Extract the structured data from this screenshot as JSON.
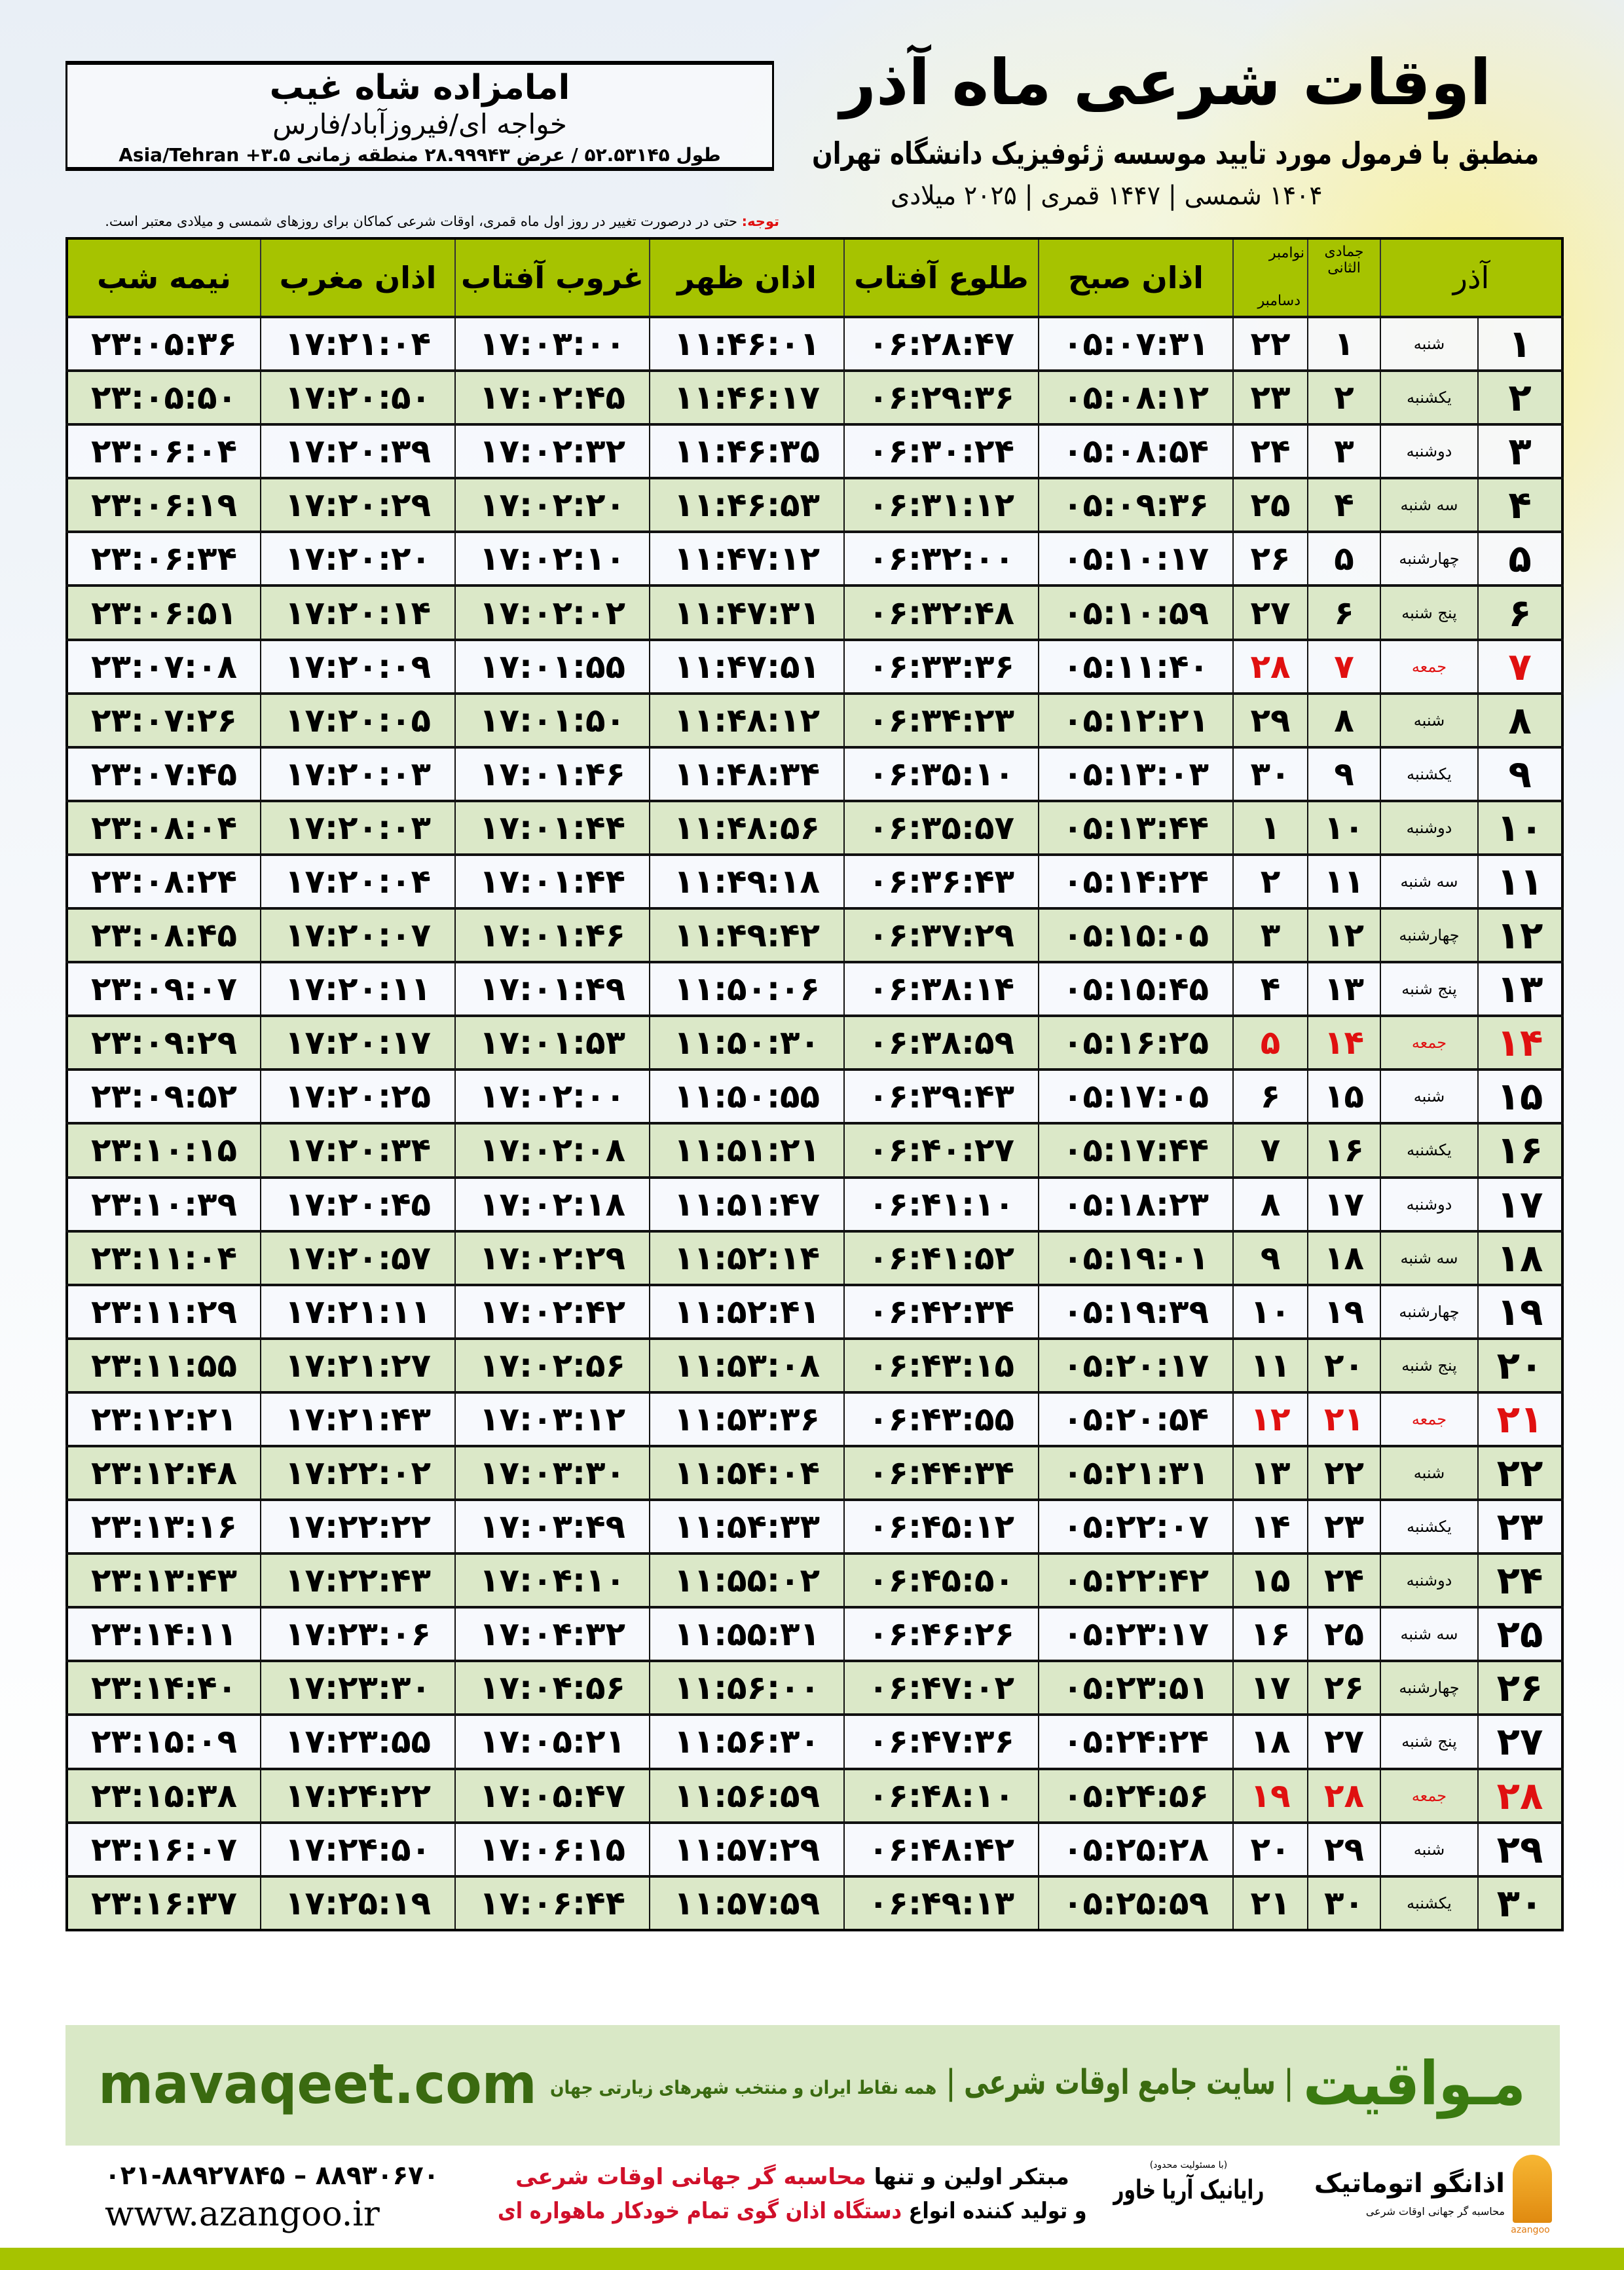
{
  "header": {
    "title": "اوقات شرعی ماه آذر",
    "subtitle": "منطبق با فرمول مورد تایید موسسه ژئوفیزیک دانشگاه تهران",
    "dateline": "۱۴۰۴ شمسی | ۱۴۴۷ قمری | ۲۰۲۵ میلادی"
  },
  "location": {
    "name": "امامزاده شاه غیب",
    "place": "خواجه ای/فیروزآباد/فارس",
    "coords": "طول ۵۲.۵۳۱۴۵ / عرض ۲۸.۹۹۹۴۳ منطقه زمانی ۳.۵+ Asia/Tehran"
  },
  "note": {
    "label": "توجه:",
    "text": " حتی در درصورت تغییر در روز اول ماه قمری، اوقات شرعی کماکان برای روزهای شمسی و میلادی معتبر است."
  },
  "colors": {
    "header_bg": "#a6c300",
    "alt_row": "#dbe8c8",
    "friday": "#e01010",
    "brand": "#3a7a10"
  },
  "table": {
    "columns": {
      "day": "آذر",
      "hijri": "جمادی الثانی",
      "greg_top": "نوامبر",
      "greg_bottom": "دسامبر",
      "fajr": "اذان صبح",
      "sunrise": "طلوع آفتاب",
      "dhuhr": "اذان ظهر",
      "sunset": "غروب آفتاب",
      "maghrib": "اذان مغرب",
      "midnight": "نیمه شب"
    },
    "rows": [
      {
        "day": "۱",
        "weekday": "شنبه",
        "hijri": "۱",
        "greg": "۲۲",
        "fajr": "۰۵:۰۷:۳۱",
        "sunrise": "۰۶:۲۸:۴۷",
        "dhuhr": "۱۱:۴۶:۰۱",
        "sunset": "۱۷:۰۳:۰۰",
        "maghrib": "۱۷:۲۱:۰۴",
        "midnight": "۲۳:۰۵:۳۶"
      },
      {
        "day": "۲",
        "weekday": "یکشنبه",
        "hijri": "۲",
        "greg": "۲۳",
        "fajr": "۰۵:۰۸:۱۲",
        "sunrise": "۰۶:۲۹:۳۶",
        "dhuhr": "۱۱:۴۶:۱۷",
        "sunset": "۱۷:۰۲:۴۵",
        "maghrib": "۱۷:۲۰:۵۰",
        "midnight": "۲۳:۰۵:۵۰"
      },
      {
        "day": "۳",
        "weekday": "دوشنبه",
        "hijri": "۳",
        "greg": "۲۴",
        "fajr": "۰۵:۰۸:۵۴",
        "sunrise": "۰۶:۳۰:۲۴",
        "dhuhr": "۱۱:۴۶:۳۵",
        "sunset": "۱۷:۰۲:۳۲",
        "maghrib": "۱۷:۲۰:۳۹",
        "midnight": "۲۳:۰۶:۰۴"
      },
      {
        "day": "۴",
        "weekday": "سه شنبه",
        "hijri": "۴",
        "greg": "۲۵",
        "fajr": "۰۵:۰۹:۳۶",
        "sunrise": "۰۶:۳۱:۱۲",
        "dhuhr": "۱۱:۴۶:۵۳",
        "sunset": "۱۷:۰۲:۲۰",
        "maghrib": "۱۷:۲۰:۲۹",
        "midnight": "۲۳:۰۶:۱۹"
      },
      {
        "day": "۵",
        "weekday": "چهارشنبه",
        "hijri": "۵",
        "greg": "۲۶",
        "fajr": "۰۵:۱۰:۱۷",
        "sunrise": "۰۶:۳۲:۰۰",
        "dhuhr": "۱۱:۴۷:۱۲",
        "sunset": "۱۷:۰۲:۱۰",
        "maghrib": "۱۷:۲۰:۲۰",
        "midnight": "۲۳:۰۶:۳۴"
      },
      {
        "day": "۶",
        "weekday": "پنج شنبه",
        "hijri": "۶",
        "greg": "۲۷",
        "fajr": "۰۵:۱۰:۵۹",
        "sunrise": "۰۶:۳۲:۴۸",
        "dhuhr": "۱۱:۴۷:۳۱",
        "sunset": "۱۷:۰۲:۰۲",
        "maghrib": "۱۷:۲۰:۱۴",
        "midnight": "۲۳:۰۶:۵۱"
      },
      {
        "day": "۷",
        "weekday": "جمعه",
        "hijri": "۷",
        "greg": "۲۸",
        "fajr": "۰۵:۱۱:۴۰",
        "sunrise": "۰۶:۳۳:۳۶",
        "dhuhr": "۱۱:۴۷:۵۱",
        "sunset": "۱۷:۰۱:۵۵",
        "maghrib": "۱۷:۲۰:۰۹",
        "midnight": "۲۳:۰۷:۰۸",
        "holiday": true
      },
      {
        "day": "۸",
        "weekday": "شنبه",
        "hijri": "۸",
        "greg": "۲۹",
        "fajr": "۰۵:۱۲:۲۱",
        "sunrise": "۰۶:۳۴:۲۳",
        "dhuhr": "۱۱:۴۸:۱۲",
        "sunset": "۱۷:۰۱:۵۰",
        "maghrib": "۱۷:۲۰:۰۵",
        "midnight": "۲۳:۰۷:۲۶"
      },
      {
        "day": "۹",
        "weekday": "یکشنبه",
        "hijri": "۹",
        "greg": "۳۰",
        "fajr": "۰۵:۱۳:۰۳",
        "sunrise": "۰۶:۳۵:۱۰",
        "dhuhr": "۱۱:۴۸:۳۴",
        "sunset": "۱۷:۰۱:۴۶",
        "maghrib": "۱۷:۲۰:۰۳",
        "midnight": "۲۳:۰۷:۴۵"
      },
      {
        "day": "۱۰",
        "weekday": "دوشنبه",
        "hijri": "۱۰",
        "greg": "۱",
        "fajr": "۰۵:۱۳:۴۴",
        "sunrise": "۰۶:۳۵:۵۷",
        "dhuhr": "۱۱:۴۸:۵۶",
        "sunset": "۱۷:۰۱:۴۴",
        "maghrib": "۱۷:۲۰:۰۳",
        "midnight": "۲۳:۰۸:۰۴"
      },
      {
        "day": "۱۱",
        "weekday": "سه شنبه",
        "hijri": "۱۱",
        "greg": "۲",
        "fajr": "۰۵:۱۴:۲۴",
        "sunrise": "۰۶:۳۶:۴۳",
        "dhuhr": "۱۱:۴۹:۱۸",
        "sunset": "۱۷:۰۱:۴۴",
        "maghrib": "۱۷:۲۰:۰۴",
        "midnight": "۲۳:۰۸:۲۴"
      },
      {
        "day": "۱۲",
        "weekday": "چهارشنبه",
        "hijri": "۱۲",
        "greg": "۳",
        "fajr": "۰۵:۱۵:۰۵",
        "sunrise": "۰۶:۳۷:۲۹",
        "dhuhr": "۱۱:۴۹:۴۲",
        "sunset": "۱۷:۰۱:۴۶",
        "maghrib": "۱۷:۲۰:۰۷",
        "midnight": "۲۳:۰۸:۴۵"
      },
      {
        "day": "۱۳",
        "weekday": "پنج شنبه",
        "hijri": "۱۳",
        "greg": "۴",
        "fajr": "۰۵:۱۵:۴۵",
        "sunrise": "۰۶:۳۸:۱۴",
        "dhuhr": "۱۱:۵۰:۰۶",
        "sunset": "۱۷:۰۱:۴۹",
        "maghrib": "۱۷:۲۰:۱۱",
        "midnight": "۲۳:۰۹:۰۷"
      },
      {
        "day": "۱۴",
        "weekday": "جمعه",
        "hijri": "۱۴",
        "greg": "۵",
        "fajr": "۰۵:۱۶:۲۵",
        "sunrise": "۰۶:۳۸:۵۹",
        "dhuhr": "۱۱:۵۰:۳۰",
        "sunset": "۱۷:۰۱:۵۳",
        "maghrib": "۱۷:۲۰:۱۷",
        "midnight": "۲۳:۰۹:۲۹",
        "holiday": true
      },
      {
        "day": "۱۵",
        "weekday": "شنبه",
        "hijri": "۱۵",
        "greg": "۶",
        "fajr": "۰۵:۱۷:۰۵",
        "sunrise": "۰۶:۳۹:۴۳",
        "dhuhr": "۱۱:۵۰:۵۵",
        "sunset": "۱۷:۰۲:۰۰",
        "maghrib": "۱۷:۲۰:۲۵",
        "midnight": "۲۳:۰۹:۵۲"
      },
      {
        "day": "۱۶",
        "weekday": "یکشنبه",
        "hijri": "۱۶",
        "greg": "۷",
        "fajr": "۰۵:۱۷:۴۴",
        "sunrise": "۰۶:۴۰:۲۷",
        "dhuhr": "۱۱:۵۱:۲۱",
        "sunset": "۱۷:۰۲:۰۸",
        "maghrib": "۱۷:۲۰:۳۴",
        "midnight": "۲۳:۱۰:۱۵"
      },
      {
        "day": "۱۷",
        "weekday": "دوشنبه",
        "hijri": "۱۷",
        "greg": "۸",
        "fajr": "۰۵:۱۸:۲۳",
        "sunrise": "۰۶:۴۱:۱۰",
        "dhuhr": "۱۱:۵۱:۴۷",
        "sunset": "۱۷:۰۲:۱۸",
        "maghrib": "۱۷:۲۰:۴۵",
        "midnight": "۲۳:۱۰:۳۹"
      },
      {
        "day": "۱۸",
        "weekday": "سه شنبه",
        "hijri": "۱۸",
        "greg": "۹",
        "fajr": "۰۵:۱۹:۰۱",
        "sunrise": "۰۶:۴۱:۵۲",
        "dhuhr": "۱۱:۵۲:۱۴",
        "sunset": "۱۷:۰۲:۲۹",
        "maghrib": "۱۷:۲۰:۵۷",
        "midnight": "۲۳:۱۱:۰۴"
      },
      {
        "day": "۱۹",
        "weekday": "چهارشنبه",
        "hijri": "۱۹",
        "greg": "۱۰",
        "fajr": "۰۵:۱۹:۳۹",
        "sunrise": "۰۶:۴۲:۳۴",
        "dhuhr": "۱۱:۵۲:۴۱",
        "sunset": "۱۷:۰۲:۴۲",
        "maghrib": "۱۷:۲۱:۱۱",
        "midnight": "۲۳:۱۱:۲۹"
      },
      {
        "day": "۲۰",
        "weekday": "پنج شنبه",
        "hijri": "۲۰",
        "greg": "۱۱",
        "fajr": "۰۵:۲۰:۱۷",
        "sunrise": "۰۶:۴۳:۱۵",
        "dhuhr": "۱۱:۵۳:۰۸",
        "sunset": "۱۷:۰۲:۵۶",
        "maghrib": "۱۷:۲۱:۲۷",
        "midnight": "۲۳:۱۱:۵۵"
      },
      {
        "day": "۲۱",
        "weekday": "جمعه",
        "hijri": "۲۱",
        "greg": "۱۲",
        "fajr": "۰۵:۲۰:۵۴",
        "sunrise": "۰۶:۴۳:۵۵",
        "dhuhr": "۱۱:۵۳:۳۶",
        "sunset": "۱۷:۰۳:۱۲",
        "maghrib": "۱۷:۲۱:۴۳",
        "midnight": "۲۳:۱۲:۲۱",
        "holiday": true
      },
      {
        "day": "۲۲",
        "weekday": "شنبه",
        "hijri": "۲۲",
        "greg": "۱۳",
        "fajr": "۰۵:۲۱:۳۱",
        "sunrise": "۰۶:۴۴:۳۴",
        "dhuhr": "۱۱:۵۴:۰۴",
        "sunset": "۱۷:۰۳:۳۰",
        "maghrib": "۱۷:۲۲:۰۲",
        "midnight": "۲۳:۱۲:۴۸"
      },
      {
        "day": "۲۳",
        "weekday": "یکشنبه",
        "hijri": "۲۳",
        "greg": "۱۴",
        "fajr": "۰۵:۲۲:۰۷",
        "sunrise": "۰۶:۴۵:۱۲",
        "dhuhr": "۱۱:۵۴:۳۳",
        "sunset": "۱۷:۰۳:۴۹",
        "maghrib": "۱۷:۲۲:۲۲",
        "midnight": "۲۳:۱۳:۱۶"
      },
      {
        "day": "۲۴",
        "weekday": "دوشنبه",
        "hijri": "۲۴",
        "greg": "۱۵",
        "fajr": "۰۵:۲۲:۴۲",
        "sunrise": "۰۶:۴۵:۵۰",
        "dhuhr": "۱۱:۵۵:۰۲",
        "sunset": "۱۷:۰۴:۱۰",
        "maghrib": "۱۷:۲۲:۴۳",
        "midnight": "۲۳:۱۳:۴۳"
      },
      {
        "day": "۲۵",
        "weekday": "سه شنبه",
        "hijri": "۲۵",
        "greg": "۱۶",
        "fajr": "۰۵:۲۳:۱۷",
        "sunrise": "۰۶:۴۶:۲۶",
        "dhuhr": "۱۱:۵۵:۳۱",
        "sunset": "۱۷:۰۴:۳۲",
        "maghrib": "۱۷:۲۳:۰۶",
        "midnight": "۲۳:۱۴:۱۱"
      },
      {
        "day": "۲۶",
        "weekday": "چهارشنبه",
        "hijri": "۲۶",
        "greg": "۱۷",
        "fajr": "۰۵:۲۳:۵۱",
        "sunrise": "۰۶:۴۷:۰۲",
        "dhuhr": "۱۱:۵۶:۰۰",
        "sunset": "۱۷:۰۴:۵۶",
        "maghrib": "۱۷:۲۳:۳۰",
        "midnight": "۲۳:۱۴:۴۰"
      },
      {
        "day": "۲۷",
        "weekday": "پنج شنبه",
        "hijri": "۲۷",
        "greg": "۱۸",
        "fajr": "۰۵:۲۴:۲۴",
        "sunrise": "۰۶:۴۷:۳۶",
        "dhuhr": "۱۱:۵۶:۳۰",
        "sunset": "۱۷:۰۵:۲۱",
        "maghrib": "۱۷:۲۳:۵۵",
        "midnight": "۲۳:۱۵:۰۹"
      },
      {
        "day": "۲۸",
        "weekday": "جمعه",
        "hijri": "۲۸",
        "greg": "۱۹",
        "fajr": "۰۵:۲۴:۵۶",
        "sunrise": "۰۶:۴۸:۱۰",
        "dhuhr": "۱۱:۵۶:۵۹",
        "sunset": "۱۷:۰۵:۴۷",
        "maghrib": "۱۷:۲۴:۲۲",
        "midnight": "۲۳:۱۵:۳۸",
        "holiday": true
      },
      {
        "day": "۲۹",
        "weekday": "شنبه",
        "hijri": "۲۹",
        "greg": "۲۰",
        "fajr": "۰۵:۲۵:۲۸",
        "sunrise": "۰۶:۴۸:۴۲",
        "dhuhr": "۱۱:۵۷:۲۹",
        "sunset": "۱۷:۰۶:۱۵",
        "maghrib": "۱۷:۲۴:۵۰",
        "midnight": "۲۳:۱۶:۰۷"
      },
      {
        "day": "۳۰",
        "weekday": "یکشنبه",
        "hijri": "۳۰",
        "greg": "۲۱",
        "fajr": "۰۵:۲۵:۵۹",
        "sunrise": "۰۶:۴۹:۱۳",
        "dhuhr": "۱۱:۵۷:۵۹",
        "sunset": "۱۷:۰۶:۴۴",
        "maghrib": "۱۷:۲۵:۱۹",
        "midnight": "۲۳:۱۶:۳۷"
      }
    ]
  },
  "banner": {
    "brand": "مـواقیت",
    "tagline": "| سایت جامع اوقات شرعی |",
    "tagline2": "همه نقاط ایران و منتخب شهرهای زیارتی جهان",
    "url": "mavaqeet.com"
  },
  "footer": {
    "phone": "۰۲۱-۸۸۹۲۷۸۴۵ – ۸۸۹۳۰۶۷۰",
    "website": "www.azangoo.ir",
    "promo_1a": "مبتکر اولین و تنها ",
    "promo_1b": "محاسبه گر جهانی اوقات شرعی",
    "promo_2a": "و تولید کننده انواع ",
    "promo_2b": "دستگاه اذان گوی تمام خودکار ماهواره ای",
    "rayanik_note": "(با مسئولیت محدود)",
    "rayanik": "رایانیک آریا خاور",
    "azangoo_title": "اذانگو اتوماتیک",
    "azangoo_sub": "محاسبه گر جهانی اوقات شرعی",
    "azangoo_en": "azangoo"
  }
}
